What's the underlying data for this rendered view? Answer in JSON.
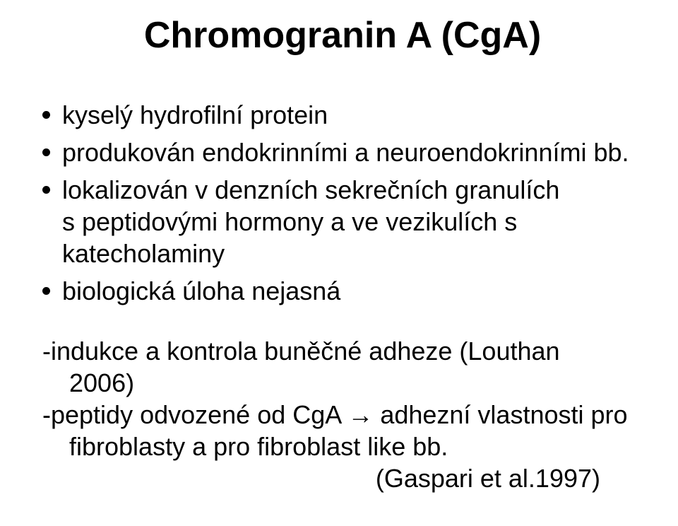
{
  "title": "Chromogranin A (CgA)",
  "bullets": {
    "b1": "kyselý hydrofilní protein",
    "b2": "produkován endokrinními a neuroendokrinními bb.",
    "b3": "lokalizován v denzních sekrečních granulích s peptidovými hormony a ve vezikulích s katecholaminy",
    "b4": "biologická úloha nejasná"
  },
  "tail": {
    "l1": "-indukce a kontrola buněčné adheze (Louthan",
    "l2": "2006)",
    "l3a": "-peptidy odvozené od CgA ",
    "arrow": "→",
    "l3b": " adhezní vlastnosti pro",
    "l4": "fibroblasty a pro fibroblast like bb.",
    "citation": "(Gaspari et al.1997)"
  },
  "colors": {
    "background": "#ffffff",
    "text": "#000000"
  },
  "fonts": {
    "family": "Comic Sans MS",
    "title_size_pt": 40,
    "body_size_pt": 27
  }
}
